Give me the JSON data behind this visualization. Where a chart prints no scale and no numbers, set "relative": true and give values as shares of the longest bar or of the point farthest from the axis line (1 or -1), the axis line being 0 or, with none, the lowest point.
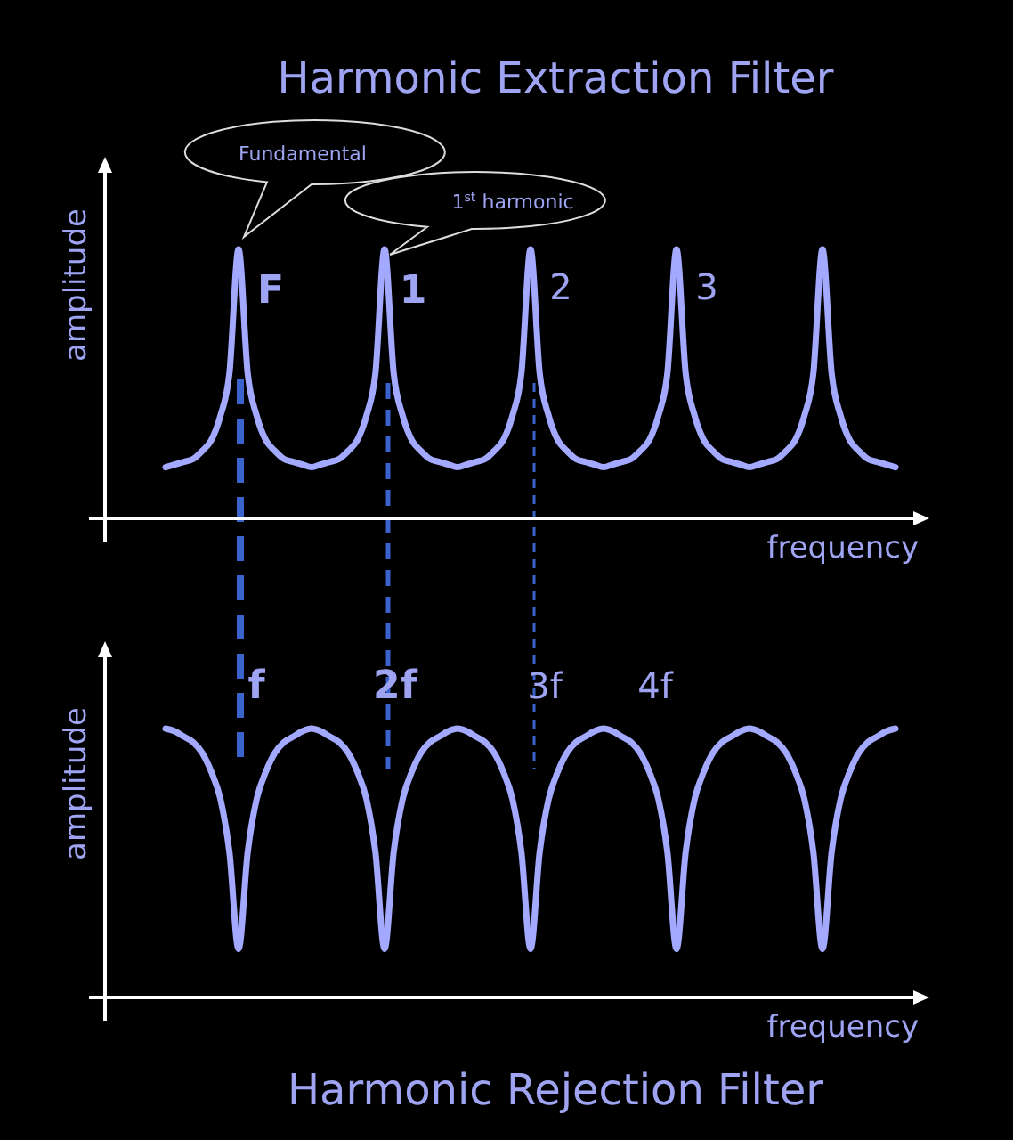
{
  "chart_data": [
    {
      "type": "line",
      "title": "Harmonic Extraction Filter",
      "xlabel": "frequency",
      "ylabel": "amplitude",
      "relative": true,
      "categories": [
        null,
        null,
        null,
        null,
        null,
        null,
        null,
        null,
        null,
        null,
        null,
        null,
        null,
        null,
        null,
        null,
        null,
        null,
        null,
        null,
        null,
        null,
        null,
        null,
        null,
        null,
        null,
        null,
        null,
        null,
        null,
        null,
        null,
        null,
        null,
        null,
        null,
        null,
        null,
        null,
        null,
        null,
        null,
        null,
        null,
        null,
        null,
        null,
        null,
        null,
        null,
        null,
        null,
        null,
        null,
        null,
        null,
        null,
        null,
        null,
        null,
        null,
        null,
        null,
        null,
        null,
        null,
        null,
        null,
        null,
        null,
        null,
        null,
        null,
        null,
        null,
        null,
        null,
        null,
        null,
        null
      ],
      "color": "#a3a9ff",
      "values": [
        0.19,
        0.2,
        0.21,
        0.22,
        0.25,
        0.29,
        0.38,
        0.54,
        1,
        0.54,
        0.38,
        0.29,
        0.25,
        0.22,
        0.21,
        0.2,
        0.19,
        0.2,
        0.21,
        0.22,
        0.25,
        0.29,
        0.38,
        0.54,
        1,
        0.54,
        0.38,
        0.29,
        0.25,
        0.22,
        0.21,
        0.2,
        0.19,
        0.2,
        0.21,
        0.22,
        0.25,
        0.29,
        0.38,
        0.54,
        1,
        0.54,
        0.38,
        0.29,
        0.25,
        0.22,
        0.21,
        0.2,
        0.19,
        0.2,
        0.21,
        0.22,
        0.25,
        0.29,
        0.38,
        0.54,
        1,
        0.54,
        0.38,
        0.29,
        0.25,
        0.22,
        0.21,
        0.2,
        0.19,
        0.2,
        0.21,
        0.22,
        0.25,
        0.29,
        0.38,
        0.54,
        1,
        0.54,
        0.38,
        0.29,
        0.25,
        0.22,
        0.21,
        0.2,
        0.19
      ],
      "annotations": [
        "Fundamental",
        "1$^{st}$ harmonic",
        "F",
        "1",
        "2",
        "3"
      ]
    },
    {
      "type": "line",
      "title": "Harmonic Rejection Filter",
      "xlabel": "frequency",
      "ylabel": "amplitude",
      "relative": true,
      "categories": [
        null,
        null,
        null,
        null,
        null,
        null,
        null,
        null,
        null,
        null,
        null,
        null,
        null,
        null,
        null,
        null,
        null,
        null,
        null,
        null,
        null,
        null,
        null,
        null,
        null,
        null,
        null,
        null,
        null,
        null,
        null,
        null,
        null,
        null,
        null,
        null,
        null,
        null,
        null,
        null,
        null,
        null,
        null,
        null,
        null,
        null,
        null,
        null,
        null,
        null,
        null,
        null,
        null,
        null,
        null,
        null,
        null,
        null,
        null,
        null,
        null,
        null,
        null,
        null,
        null,
        null,
        null,
        null,
        null,
        null,
        null,
        null,
        null,
        null,
        null,
        null,
        null,
        null,
        null,
        null,
        null
      ],
      "color": "#a3a9ff",
      "values": [
        1,
        0.99,
        0.97,
        0.95,
        0.91,
        0.84,
        0.74,
        0.54,
        0.18,
        0.54,
        0.74,
        0.84,
        0.91,
        0.95,
        0.97,
        0.99,
        1,
        0.99,
        0.97,
        0.95,
        0.91,
        0.84,
        0.74,
        0.54,
        0.18,
        0.54,
        0.74,
        0.84,
        0.91,
        0.95,
        0.97,
        0.99,
        1,
        0.99,
        0.97,
        0.95,
        0.91,
        0.84,
        0.74,
        0.54,
        0.18,
        0.54,
        0.74,
        0.84,
        0.91,
        0.95,
        0.97,
        0.99,
        1,
        0.99,
        0.97,
        0.95,
        0.91,
        0.84,
        0.74,
        0.54,
        0.18,
        0.54,
        0.74,
        0.84,
        0.91,
        0.95,
        0.97,
        0.99,
        1,
        0.99,
        0.97,
        0.95,
        0.91,
        0.84,
        0.74,
        0.54,
        0.18,
        0.54,
        0.74,
        0.84,
        0.91,
        0.95,
        0.97,
        0.99,
        1
      ],
      "annotations": [
        "f",
        "2f",
        "3f",
        "4f"
      ]
    }
  ]
}
